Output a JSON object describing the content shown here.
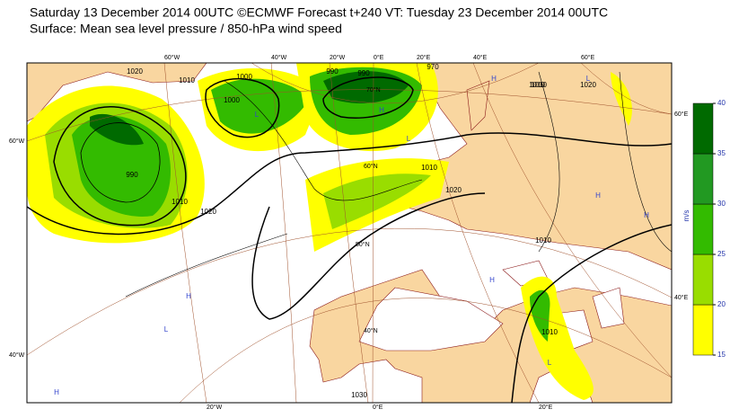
{
  "header": {
    "line1": "Saturday 13 December 2014 00UTC ©ECMWF Forecast t+240 VT: Tuesday 23 December 2014 00UTC",
    "line2": "Surface: Mean sea level pressure / 850-hPa wind speed"
  },
  "colorbar": {
    "unit": "m/s",
    "ticks": [
      15,
      20,
      25,
      30,
      35,
      40
    ],
    "colors": [
      "#ffff00",
      "#99dd00",
      "#33bb00",
      "#229922",
      "#006a00"
    ]
  },
  "grid_labels": [
    "60°W",
    "40°W",
    "20°W",
    "0°E",
    "20°E",
    "40°E",
    "60°E",
    "20°W",
    "0°E",
    "20°E",
    "60°W",
    "40°W",
    "60°E",
    "40°E",
    "70°N",
    "60°N",
    "50°N",
    "40°N"
  ],
  "isobar_labels": [
    "1020",
    "1010",
    "1000",
    "990",
    "990",
    "1010",
    "1020",
    "1000",
    "990",
    "970",
    "1010",
    "1020",
    "1010",
    "1010",
    "1010",
    "1020",
    "1010",
    "1030"
  ],
  "pressure_centers": [
    "L",
    "L",
    "H",
    "L",
    "H",
    "H",
    "H",
    "L",
    "H",
    "L",
    "H",
    "H"
  ]
}
